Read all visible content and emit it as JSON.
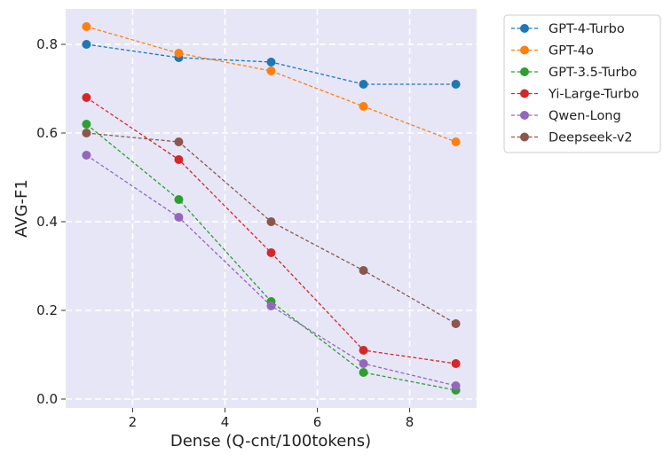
{
  "chart_data": {
    "type": "line",
    "title": "",
    "xlabel": "Dense (Q-cnt/100tokens)",
    "ylabel": "AVG-F1",
    "xlim": [
      0.55,
      9.45
    ],
    "ylim": [
      -0.02,
      0.88
    ],
    "xticks": [
      2,
      4,
      6,
      8
    ],
    "xtick_labels": [
      "2",
      "4",
      "6",
      "8"
    ],
    "yticks": [
      0.0,
      0.2,
      0.4,
      0.6,
      0.8
    ],
    "ytick_labels": [
      "0.0",
      "0.2",
      "0.4",
      "0.6",
      "0.8"
    ],
    "grid": true,
    "legend_position": "outside-top-right",
    "x": [
      1,
      3,
      5,
      7,
      9
    ],
    "series": [
      {
        "name": "GPT-4-Turbo",
        "color": "#1f77b4",
        "values": [
          0.8,
          0.77,
          0.76,
          0.71,
          0.71
        ]
      },
      {
        "name": "GPT-4o",
        "color": "#ff7f0e",
        "values": [
          0.84,
          0.78,
          0.74,
          0.66,
          0.58
        ]
      },
      {
        "name": "GPT-3.5-Turbo",
        "color": "#2ca02c",
        "values": [
          0.62,
          0.45,
          0.22,
          0.06,
          0.02
        ]
      },
      {
        "name": "Yi-Large-Turbo",
        "color": "#d62728",
        "values": [
          0.68,
          0.54,
          0.33,
          0.11,
          0.08
        ]
      },
      {
        "name": "Qwen-Long",
        "color": "#9467bd",
        "values": [
          0.55,
          0.41,
          0.21,
          0.08,
          0.03
        ]
      },
      {
        "name": "Deepseek-v2",
        "color": "#8c564b",
        "values": [
          0.6,
          0.58,
          0.4,
          0.29,
          0.17
        ]
      }
    ]
  },
  "colors": {
    "plot_background": "#e6e6f7",
    "grid": "#ffffff"
  }
}
